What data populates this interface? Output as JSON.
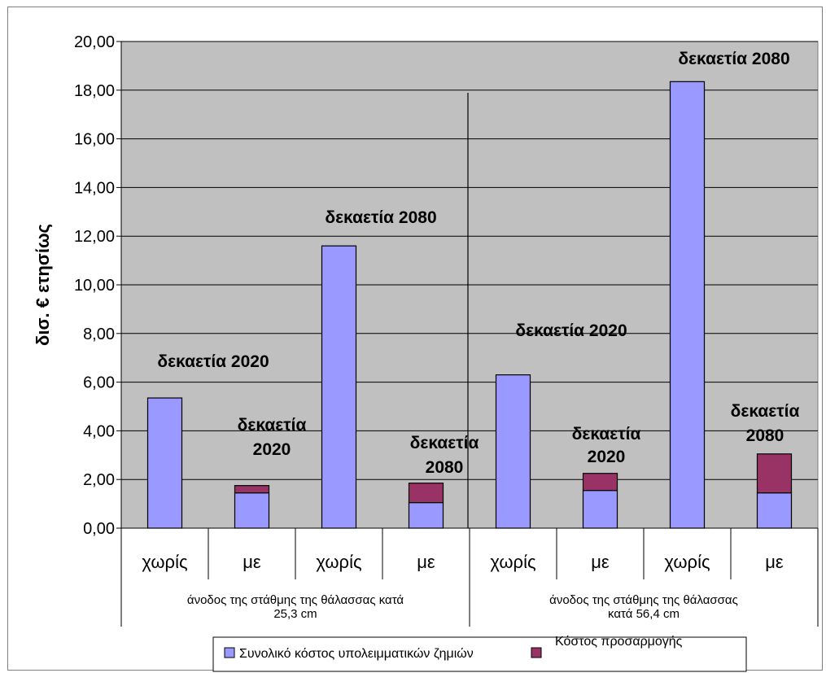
{
  "chart_data": {
    "type": "bar",
    "stacked": true,
    "ylabel": "δισ. €  ετησίως",
    "ylim": [
      0,
      20
    ],
    "yticks": [
      "0,00",
      "2,00",
      "4,00",
      "6,00",
      "8,00",
      "10,00",
      "12,00",
      "14,00",
      "16,00",
      "18,00",
      "20,00"
    ],
    "grid": true,
    "categories": [
      "χωρίς",
      "με",
      "χωρίς",
      "με",
      "χωρίς",
      "με",
      "χωρίς",
      "με"
    ],
    "groups": [
      "άνοδος της στάθμης της θάλασσας κατά 25,3 cm",
      "άνοδος της στάθμης της θάλασσας κατά  56,4 cm"
    ],
    "series": [
      {
        "name": "Συνολικό κόστος υπολειμματικών  ζημιών",
        "color": "#9999ff",
        "values": [
          5.35,
          1.45,
          11.6,
          1.05,
          6.3,
          1.55,
          18.35,
          1.45
        ]
      },
      {
        "name": "Κόστος προσαρμογής",
        "color": "#993366",
        "values": [
          0,
          0.3,
          0,
          0.8,
          0,
          0.7,
          0,
          1.6
        ]
      }
    ],
    "annotations": [
      "δεκαετία 2020",
      "δεκαετία 2020",
      "δεκαετία 2080",
      "δεκαετία 2080",
      "δεκαετία 2020",
      "δεκαετία 2020",
      "δεκαετία 2080",
      "δεκαετία 2080"
    ],
    "legend_position": "bottom",
    "plot_background": "#c0c0c0"
  }
}
